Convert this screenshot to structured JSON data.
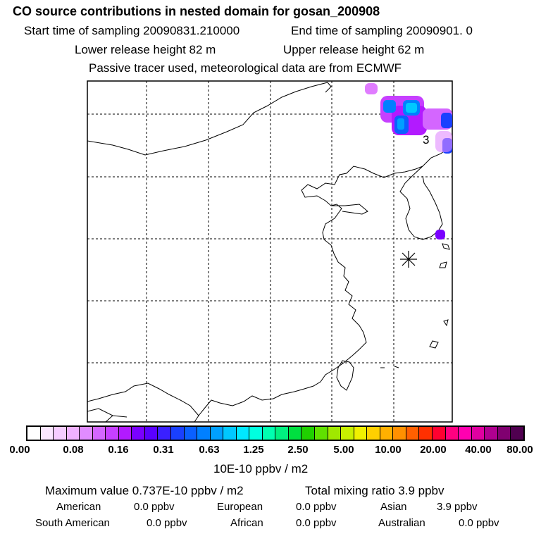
{
  "header": {
    "title": "CO  source contributions in nested domain for gosan_200908",
    "start_label": "Start time of sampling 20090831.210000",
    "end_label": "End time of sampling 20090901.     0",
    "lower_label": "Lower release height   82 m",
    "upper_label": "Upper release height   62 m",
    "note": "Passive tracer used, meteorological data are from ECMWF"
  },
  "map": {
    "region_label": "3"
  },
  "colorbar": {
    "colors": [
      "#ffffff",
      "#fbe6ff",
      "#f6ccff",
      "#f0b2ff",
      "#e18cff",
      "#d466ff",
      "#c640ff",
      "#b21aff",
      "#7a00ff",
      "#5a00ff",
      "#3a20ff",
      "#1a40ff",
      "#0a60ff",
      "#0080ff",
      "#00a0ff",
      "#00c8ff",
      "#00e8ff",
      "#00ffe0",
      "#00ffb0",
      "#00f080",
      "#00e040",
      "#20d000",
      "#60e000",
      "#a0e800",
      "#c8f000",
      "#f0f000",
      "#ffd000",
      "#ffb000",
      "#ff9000",
      "#ff6000",
      "#ff3000",
      "#ff0030",
      "#ff0080",
      "#ff00b0",
      "#e000a0",
      "#b00090",
      "#800070",
      "#500050"
    ],
    "ticks": [
      "0.00",
      "0.08",
      "0.16",
      "0.31",
      "0.63",
      "1.25",
      "2.50",
      "5.00",
      "10.00",
      "20.00",
      "40.00",
      "80.00"
    ],
    "units": "10E-10 ppbv / m2"
  },
  "footer": {
    "max_value": "Maximum value  0.737E-10 ppbv / m2",
    "total": "Total mixing ratio       3.9 ppbv",
    "regions": [
      {
        "name": "American",
        "value": "0.0 ppbv"
      },
      {
        "name": "European",
        "value": "0.0 ppbv"
      },
      {
        "name": "Asian",
        "value": "3.9 ppbv"
      },
      {
        "name": "South American",
        "value": "0.0 ppbv"
      },
      {
        "name": "African",
        "value": "0.0 ppbv"
      },
      {
        "name": "Australian",
        "value": "0.0 ppbv"
      }
    ]
  }
}
